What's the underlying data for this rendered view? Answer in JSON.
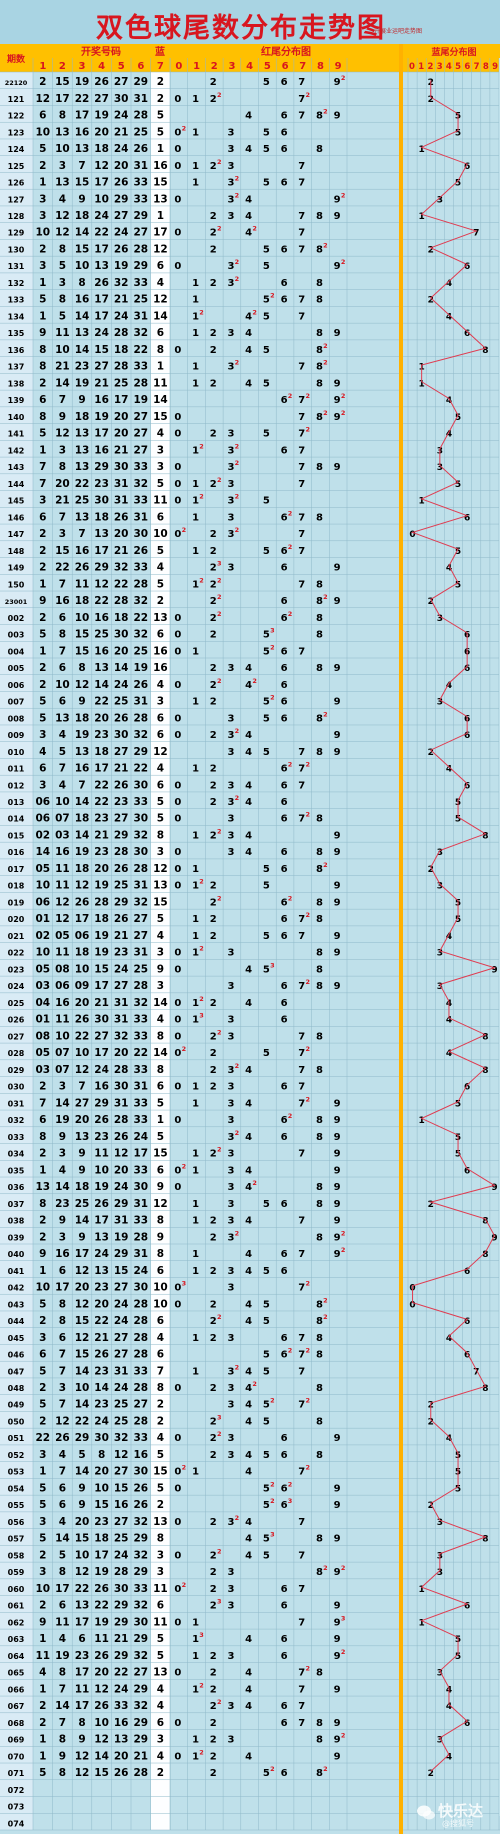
{
  "title": "双色球尾数分布走势图",
  "subtitle": "开展业运吧走势图",
  "watermark": {
    "name": "快乐达",
    "sub": "@搜狐号"
  },
  "headers": {
    "period": "期数",
    "winning_numbers": "开奖号码",
    "blue": "蓝",
    "red_tail": "红尾分布图",
    "blue_tail": "蓝尾分布图"
  },
  "sub_headers": {
    "ball_positions": [
      "1",
      "2",
      "3",
      "4",
      "5",
      "6",
      "7"
    ],
    "digits": [
      "0",
      "1",
      "2",
      "3",
      "4",
      "5",
      "6",
      "7",
      "8",
      "9"
    ],
    "blue_digits": "0123456789"
  },
  "colors": {
    "grid_bg": "#bfe0ea",
    "header_bg": "#ffc000",
    "separator": "#ffb100",
    "red": "#d8161f",
    "period_bg": "#d9ebf5",
    "blue_bg": "#fdfeff",
    "line": "#e03b50"
  },
  "empty_periods": [
    "072",
    "073",
    "074"
  ],
  "chart_data": {
    "type": "table",
    "title": "双色球尾数分布走势图",
    "columns": [
      "期数",
      "开奖号码",
      "蓝",
      "红尾分布图",
      "蓝尾分布图"
    ],
    "rows": [
      [
        "22120",
        "2 15 19 26 27 29 2"
      ],
      [
        "121",
        "12 17 22 27 30 31 2"
      ],
      [
        "122",
        "6 8 17 19 24 28 5"
      ],
      [
        "123",
        "10 13 16 20 21 25 5"
      ],
      [
        "124",
        "5 10 13 18 24 26 1"
      ],
      [
        "125",
        "2 3 7 12 20 31 16"
      ],
      [
        "126",
        "1 13 15 17 26 33 15"
      ],
      [
        "127",
        "3 4 9 10 29 33 13"
      ],
      [
        "128",
        "3 12 18 24 27 29 1"
      ],
      [
        "129",
        "10 12 14 22 24 27 17"
      ],
      [
        "130",
        "2 8 15 17 26 28 12"
      ],
      [
        "131",
        "3 5 10 13 19 29 6"
      ],
      [
        "132",
        "1 3 8 26 32 33 4"
      ],
      [
        "133",
        "5 8 16 17 21 25 12"
      ],
      [
        "134",
        "1 5 14 17 24 31 14"
      ],
      [
        "135",
        "9 11 13 24 28 32 6"
      ],
      [
        "136",
        "8 10 14 15 18 22 8"
      ],
      [
        "137",
        "8 21 23 27 28 33 1"
      ],
      [
        "138",
        "2 14 19 21 25 28 11"
      ],
      [
        "139",
        "6 7 9 16 17 19 14"
      ],
      [
        "140",
        "8 9 18 19 20 27 15"
      ],
      [
        "141",
        "5 12 13 17 20 27 4"
      ],
      [
        "142",
        "1 3 13 16 21 27 3"
      ],
      [
        "143",
        "7 8 13 29 30 33 3"
      ],
      [
        "144",
        "7 20 22 23 31 32 5"
      ],
      [
        "145",
        "3 21 25 30 31 33 11"
      ],
      [
        "146",
        "6 7 13 18 26 31 6"
      ],
      [
        "147",
        "2 3 7 13 20 30 10"
      ],
      [
        "148",
        "2 15 16 17 21 26 5"
      ],
      [
        "149",
        "2 22 26 29 32 33 4"
      ],
      [
        "150",
        "1 7 11 12 22 28 5"
      ],
      [
        "23001",
        "9 16 18 22 28 32 2"
      ],
      [
        "002",
        "2 6 10 16 18 22 13"
      ],
      [
        "003",
        "5 8 15 25 30 32 6"
      ],
      [
        "004",
        "1 7 15 16 20 25 16"
      ],
      [
        "005",
        "2 6 8 13 14 19 16"
      ],
      [
        "006",
        "2 10 12 14 24 26 4"
      ],
      [
        "007",
        "5 6 9 22 25 31 3"
      ],
      [
        "008",
        "5 13 18 20 26 28 6"
      ],
      [
        "009",
        "3 4 19 23 30 32 6"
      ],
      [
        "010",
        "4 5 13 18 27 29 12"
      ],
      [
        "011",
        "6 7 16 17 21 22 4"
      ],
      [
        "012",
        "3 4 7 22 26 30 6"
      ],
      [
        "013",
        "06 10 14 22 23 33 5"
      ],
      [
        "014",
        "06 07 18 23 27 30 5"
      ],
      [
        "015",
        "02 03 14 21 29 32 8"
      ],
      [
        "016",
        "14 16 19 23 28 30 3"
      ],
      [
        "017",
        "05 11 18 20 26 28 12"
      ],
      [
        "018",
        "10 11 12 19 25 31 13"
      ],
      [
        "019",
        "06 12 26 28 29 32 15"
      ],
      [
        "020",
        "01 12 17 18 26 27 5"
      ],
      [
        "021",
        "02 05 06 19 21 27 4"
      ],
      [
        "022",
        "10 11 18 19 23 31 3"
      ],
      [
        "023",
        "05 08 10 15 24 25 9"
      ],
      [
        "024",
        "03 06 09 17 27 28 3"
      ],
      [
        "025",
        "04 16 20 21 31 32 14"
      ],
      [
        "026",
        "01 11 26 30 31 33 4"
      ],
      [
        "027",
        "08 10 22 27 32 33 8"
      ],
      [
        "028",
        "05 07 10 17 20 22 14"
      ],
      [
        "029",
        "03 07 12 24 28 33 8"
      ],
      [
        "030",
        "2 3 7 16 30 31 6"
      ],
      [
        "031",
        "7 14 27 29 31 33 5"
      ],
      [
        "032",
        "6 19 20 26 28 33 1"
      ],
      [
        "033",
        "8 9 13 23 26 24 5"
      ],
      [
        "034",
        "2 3 9 11 12 17 15"
      ],
      [
        "035",
        "1 4 9 10 20 33 6"
      ],
      [
        "036",
        "13 14 18 19 24 30 9"
      ],
      [
        "037",
        "8 23 25 26 29 31 12"
      ],
      [
        "038",
        "2 9 14 17 31 33 8"
      ],
      [
        "039",
        "2 3 9 13 19 28 9"
      ],
      [
        "040",
        "9 16 17 24 29 31 8"
      ],
      [
        "041",
        "1 6 12 13 15 24 6"
      ],
      [
        "042",
        "10 17 20 23 27 30 10"
      ],
      [
        "043",
        "5 8 12 20 24 28 10"
      ],
      [
        "044",
        "2 8 15 22 24 28 6"
      ],
      [
        "045",
        "3 6 12 21 27 28 4"
      ],
      [
        "046",
        "6 7 15 26 27 28 6"
      ],
      [
        "047",
        "5 7 14 23 31 33 7"
      ],
      [
        "048",
        "2 3 10 14 24 28 8"
      ],
      [
        "049",
        "5 7 14 23 25 27 2"
      ],
      [
        "050",
        "2 12 22 24 25 28 2"
      ],
      [
        "051",
        "22 26 29 30 32 33 4"
      ],
      [
        "052",
        "3 4 5 8 12 16 5"
      ],
      [
        "053",
        "1 7 14 20 27 30 15"
      ],
      [
        "054",
        "5 6 9 10 15 26 5"
      ],
      [
        "055",
        "5 6 9 15 16 26 2"
      ],
      [
        "056",
        "3 4 20 23 27 32 13"
      ],
      [
        "057",
        "5 14 15 18 25 29 8"
      ],
      [
        "058",
        "2 5 10 17 24 32 3"
      ],
      [
        "059",
        "3 8 12 19 28 29 3"
      ],
      [
        "060",
        "10 17 22 26 30 33 11"
      ],
      [
        "061",
        "2 6 13 22 29 32 6"
      ],
      [
        "062",
        "9 11 17 19 29 30 11"
      ],
      [
        "063",
        "1 4 6 11 21 29 5"
      ],
      [
        "064",
        "11 19 23 26 29 32 5"
      ],
      [
        "065",
        "4 8 17 20 22 27 13"
      ],
      [
        "066",
        "1 7 11 12 24 29 4"
      ],
      [
        "067",
        "2 14 17 26 33 32 4"
      ],
      [
        "068",
        "2 7 8 10 16 29 6"
      ],
      [
        "069",
        "1 8 9 12 13 29 3"
      ],
      [
        "070",
        "1 9 12 14 20 21 4"
      ],
      [
        "071",
        "5 8 12 15 26 28 2"
      ],
      [
        "072",
        ""
      ],
      [
        "073",
        ""
      ],
      [
        "074",
        ""
      ]
    ],
    "red_tail_columns": [
      "0",
      "1",
      "2",
      "3",
      "4",
      "5",
      "6",
      "7",
      "8",
      "9"
    ],
    "blue_tail_columns": [
      "0",
      "1",
      "2",
      "3",
      "4",
      "5",
      "6",
      "7",
      "8",
      "9"
    ]
  }
}
